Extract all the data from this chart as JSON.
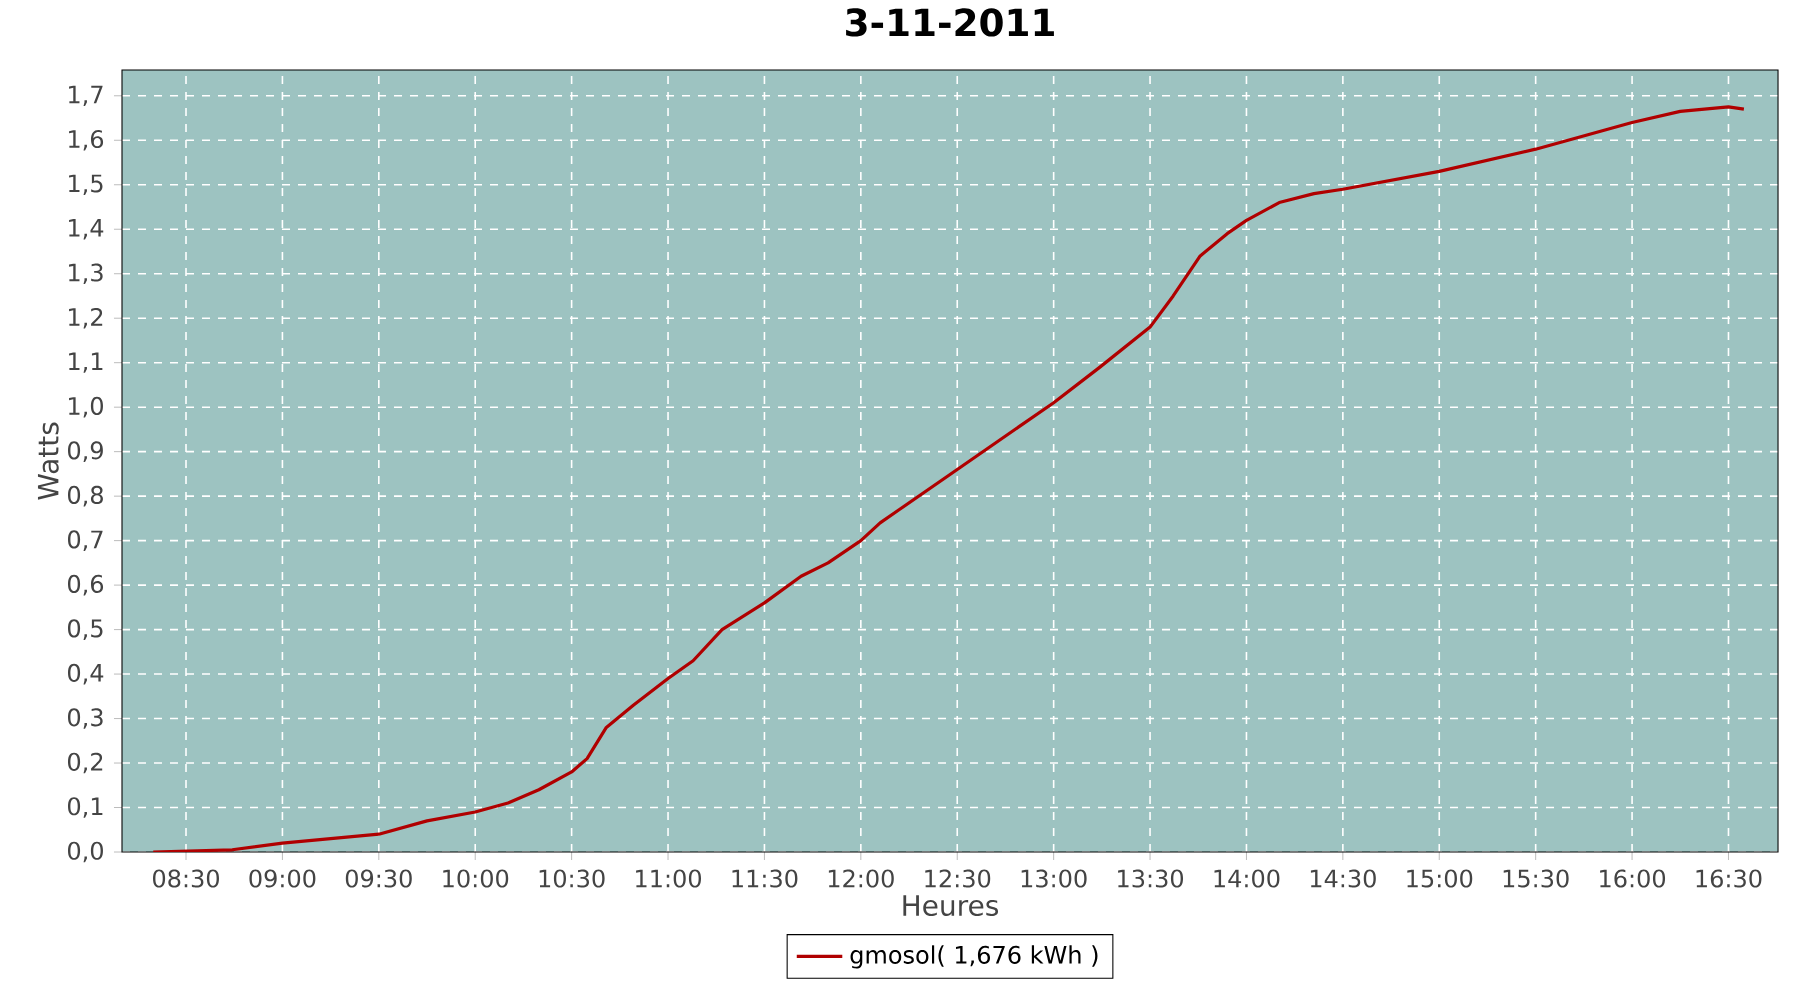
{
  "chart_data": {
    "type": "line",
    "title": "3-11-2011",
    "xlabel": "Heures",
    "ylabel": "Watts",
    "xlim": [
      8.168,
      16.757
    ],
    "ylim": [
      0,
      1.758
    ],
    "xticks": [
      {
        "value": 8.5,
        "label": "08:30"
      },
      {
        "value": 9,
        "label": "09:00"
      },
      {
        "value": 9.5,
        "label": "09:30"
      },
      {
        "value": 10,
        "label": "10:00"
      },
      {
        "value": 10.5,
        "label": "10:30"
      },
      {
        "value": 11,
        "label": "11:00"
      },
      {
        "value": 11.5,
        "label": "11:30"
      },
      {
        "value": 12,
        "label": "12:00"
      },
      {
        "value": 12.5,
        "label": "12:30"
      },
      {
        "value": 13,
        "label": "13:00"
      },
      {
        "value": 13.5,
        "label": "13:30"
      },
      {
        "value": 14,
        "label": "14:00"
      },
      {
        "value": 14.5,
        "label": "14:30"
      },
      {
        "value": 15,
        "label": "15:00"
      },
      {
        "value": 15.5,
        "label": "15:30"
      },
      {
        "value": 16,
        "label": "16:00"
      },
      {
        "value": 16.5,
        "label": "16:30"
      }
    ],
    "yticks": [
      {
        "value": 0,
        "label": "0,0"
      },
      {
        "value": 0.1,
        "label": "0,1"
      },
      {
        "value": 0.2,
        "label": "0,2"
      },
      {
        "value": 0.3,
        "label": "0,3"
      },
      {
        "value": 0.4,
        "label": "0,4"
      },
      {
        "value": 0.5,
        "label": "0,5"
      },
      {
        "value": 0.6,
        "label": "0,6"
      },
      {
        "value": 0.7,
        "label": "0,7"
      },
      {
        "value": 0.8,
        "label": "0,8"
      },
      {
        "value": 0.9,
        "label": "0,9"
      },
      {
        "value": 1.0,
        "label": "1,0"
      },
      {
        "value": 1.1,
        "label": "1,1"
      },
      {
        "value": 1.2,
        "label": "1,2"
      },
      {
        "value": 1.3,
        "label": "1,3"
      },
      {
        "value": 1.4,
        "label": "1,4"
      },
      {
        "value": 1.5,
        "label": "1,5"
      },
      {
        "value": 1.6,
        "label": "1,6"
      },
      {
        "value": 1.7,
        "label": "1,7"
      }
    ],
    "grid": true,
    "legend": "bottom",
    "marker": "none",
    "line_style": "solid",
    "x": [
      8.33,
      8.74,
      9.0,
      9.5,
      9.75,
      10.0,
      10.17,
      10.33,
      10.5,
      10.58,
      10.68,
      10.82,
      11.0,
      11.13,
      11.28,
      11.5,
      11.69,
      11.83,
      12.0,
      12.1,
      12.2,
      12.5,
      13.0,
      13.24,
      13.5,
      13.62,
      13.76,
      13.9,
      14.0,
      14.17,
      14.35,
      14.5,
      15.0,
      15.5,
      16.0,
      16.25,
      16.5,
      16.58
    ],
    "series": [
      {
        "name": "gmosol( 1,676 kWh )",
        "color": "#b00000",
        "values": [
          0,
          0.005,
          0.02,
          0.04,
          0.07,
          0.09,
          0.11,
          0.14,
          0.18,
          0.21,
          0.28,
          0.33,
          0.39,
          0.43,
          0.5,
          0.56,
          0.62,
          0.65,
          0.7,
          0.74,
          0.77,
          0.86,
          1.01,
          1.09,
          1.18,
          1.25,
          1.34,
          1.39,
          1.42,
          1.46,
          1.48,
          1.49,
          1.53,
          1.58,
          1.64,
          1.665,
          1.675,
          1.67
        ]
      }
    ]
  }
}
